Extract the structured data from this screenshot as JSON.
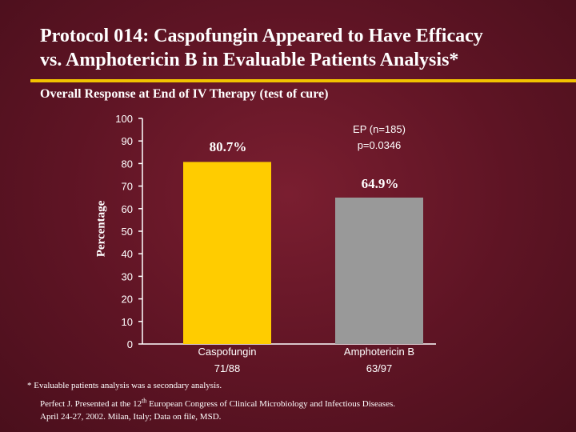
{
  "title_line1": "Protocol 014: Caspofungin Appeared to Have Efficacy",
  "title_line2": "vs. Amphotericin B in Evaluable Patients Analysis*",
  "colors": {
    "background": "#5e1424",
    "accent": "#f2c200",
    "bar_caspofungin": "#ffcc00",
    "bar_amphotericin": "#999999"
  },
  "chart_data": {
    "type": "bar",
    "title": "Overall Response at End of IV Therapy (test of cure)",
    "ylabel": "Percentage",
    "xlabel": "",
    "ylim": [
      0,
      100
    ],
    "yticks": [
      0,
      10,
      20,
      30,
      40,
      50,
      60,
      70,
      80,
      90,
      100
    ],
    "categories": [
      {
        "name": "Caspofungin",
        "count": "71/88"
      },
      {
        "name": "Amphotericin B",
        "count": "63/97"
      }
    ],
    "values": [
      80.7,
      64.9
    ],
    "value_labels": [
      "80.7%",
      "64.9%"
    ],
    "annotations": [
      "EP (n=185)",
      "p=0.0346"
    ]
  },
  "footnote": "* Evaluable patients analysis was a secondary analysis.",
  "citation": {
    "line1_before": "Perfect J. Presented at the 12",
    "line1_sup": "th",
    "line1_after": " European Congress of Clinical Microbiology and Infectious Diseases.",
    "line2": "April 24-27, 2002. Milan, Italy; Data on file, MSD."
  }
}
